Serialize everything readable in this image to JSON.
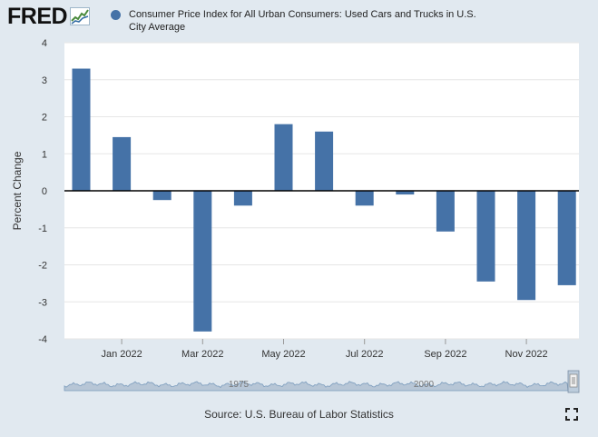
{
  "header": {
    "logo_text": "FRED",
    "logo_icon": "fred-chart-icon"
  },
  "legend": {
    "label": "Consumer Price Index for All Urban Consumers: Used Cars and Trucks in U.S. City Average",
    "color": "#4572a7"
  },
  "chart_data": {
    "type": "bar",
    "title": "Consumer Price Index for All Urban Consumers: Used Cars and Trucks in U.S. City Average",
    "xlabel": "",
    "ylabel": "Percent Change",
    "ylim": [
      -4,
      4
    ],
    "yticks": [
      4,
      3,
      2,
      1,
      0,
      -1,
      -2,
      -3,
      -4
    ],
    "grid": true,
    "legend_position": "top",
    "categories": [
      "Dec 2021",
      "Jan 2022",
      "Feb 2022",
      "Mar 2022",
      "Apr 2022",
      "May 2022",
      "Jun 2022",
      "Jul 2022",
      "Aug 2022",
      "Sep 2022",
      "Oct 2022",
      "Nov 2022",
      "Dec 2022"
    ],
    "x_tick_labels": [
      "Jan 2022",
      "Mar 2022",
      "May 2022",
      "Jul 2022",
      "Sep 2022",
      "Nov 2022"
    ],
    "x_tick_categories": [
      "Jan 2022",
      "Mar 2022",
      "May 2022",
      "Jul 2022",
      "Sep 2022",
      "Nov 2022"
    ],
    "series": [
      {
        "name": "Consumer Price Index for All Urban Consumers: Used Cars and Trucks in U.S. City Average",
        "color": "#4572a7",
        "values": [
          3.3,
          1.45,
          -0.25,
          -3.8,
          -0.4,
          1.8,
          1.6,
          -0.4,
          -0.1,
          -1.1,
          -2.45,
          -2.95,
          -2.55
        ]
      }
    ]
  },
  "navigator": {
    "labels": [
      "1975",
      "2000"
    ]
  },
  "footer": {
    "source": "Source: U.S. Bureau of Labor Statistics",
    "fullscreen_icon": "fullscreen-icon"
  }
}
